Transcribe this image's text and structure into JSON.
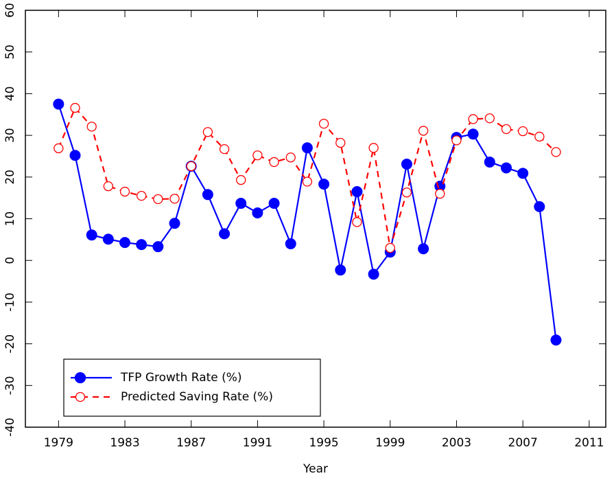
{
  "chart_data": {
    "type": "line",
    "x_label": "Year",
    "x": [
      1979,
      1980,
      1981,
      1982,
      1983,
      1984,
      1985,
      1986,
      1987,
      1988,
      1989,
      1990,
      1991,
      1992,
      1993,
      1994,
      1995,
      1996,
      1997,
      1998,
      1999,
      2000,
      2001,
      2002,
      2003,
      2004,
      2005,
      2006,
      2007,
      2008,
      2009
    ],
    "series": [
      {
        "name": "TFP Growth Rate (%)",
        "color": "#0000ff",
        "line_style": "solid",
        "marker": "filled",
        "values": [
          37.5,
          25.2,
          6.1,
          5.1,
          4.3,
          3.8,
          3.3,
          8.9,
          22.6,
          15.8,
          6.4,
          13.7,
          11.4,
          13.7,
          4.0,
          27.0,
          18.3,
          -2.3,
          16.5,
          -3.3,
          2.0,
          23.1,
          2.8,
          17.8,
          29.5,
          30.3,
          23.6,
          22.2,
          20.9,
          12.9,
          -19.1
        ]
      },
      {
        "name": "Predicted Saving Rate (%)",
        "color": "#ff0000",
        "line_style": "dashed",
        "marker": "open",
        "values": [
          26.9,
          36.6,
          32.1,
          17.8,
          16.5,
          15.5,
          14.7,
          14.8,
          22.6,
          30.8,
          26.7,
          19.3,
          25.2,
          23.6,
          24.7,
          18.9,
          32.8,
          28.2,
          9.2,
          27.0,
          3.0,
          16.3,
          31.1,
          16.0,
          28.8,
          33.9,
          34.1,
          31.5,
          31.0,
          29.7,
          26.0
        ]
      }
    ],
    "xlim": [
      1977,
      2012
    ],
    "ylim": [
      -40,
      60
    ],
    "xticks": [
      1979,
      1983,
      1987,
      1991,
      1995,
      1999,
      2003,
      2007,
      2011
    ],
    "yticks": [
      -40,
      -30,
      -20,
      -10,
      0,
      10,
      20,
      30,
      40,
      50,
      60
    ],
    "legend": "lower left",
    "grid": false
  }
}
